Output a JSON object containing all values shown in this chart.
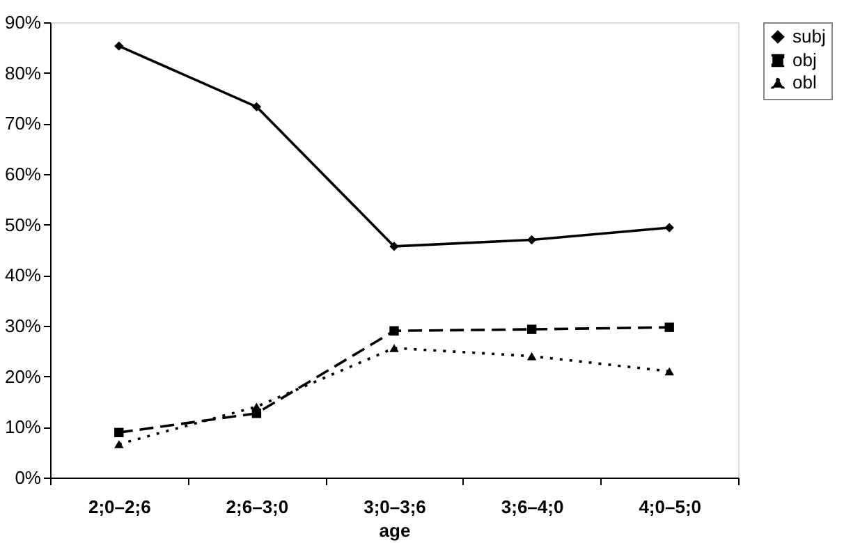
{
  "chart_data": {
    "type": "line",
    "xlabel": "age",
    "categories": [
      "2;0–2;6",
      "2;6–3;0",
      "3;0–3;6",
      "3;6–4;0",
      "4;0–5;0"
    ],
    "series": [
      {
        "name": "subj",
        "color": "#000000",
        "marker": "diamond",
        "line_style": "solid",
        "values": [
          85.3,
          73.3,
          45.7,
          47.0,
          49.4
        ]
      },
      {
        "name": "obj",
        "color": "#000000",
        "marker": "square",
        "line_style": "dashed",
        "values": [
          8.9,
          12.7,
          29.0,
          29.3,
          29.7
        ]
      },
      {
        "name": "obl",
        "color": "#000000",
        "marker": "triangle",
        "line_style": "dotted",
        "values": [
          6.6,
          14.0,
          25.6,
          24.0,
          21.0
        ]
      }
    ],
    "ylim": [
      0,
      90
    ],
    "yticks": [
      {
        "value": 0,
        "label": "0%"
      },
      {
        "value": 10,
        "label": "10%"
      },
      {
        "value": 20,
        "label": "20%"
      },
      {
        "value": 30,
        "label": "30%"
      },
      {
        "value": 40,
        "label": "40%"
      },
      {
        "value": 50,
        "label": "50%"
      },
      {
        "value": 60,
        "label": "60%"
      },
      {
        "value": 70,
        "label": "70%"
      },
      {
        "value": 80,
        "label": "80%"
      },
      {
        "value": 90,
        "label": "90%"
      }
    ],
    "grid": false,
    "legend": "right"
  }
}
